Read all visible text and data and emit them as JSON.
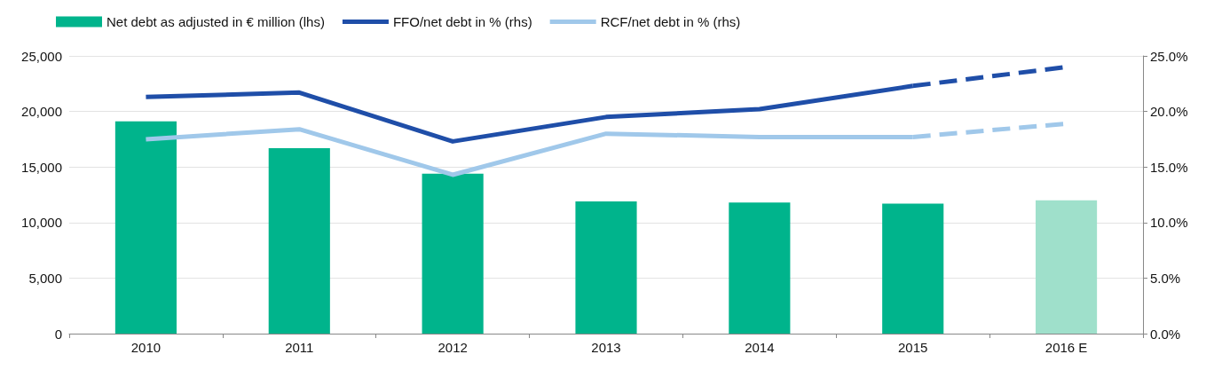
{
  "chart_data": {
    "type": "bar",
    "categories": [
      "2010",
      "2011",
      "2012",
      "2013",
      "2014",
      "2015",
      "2016 E"
    ],
    "series": [
      {
        "name": "Net debt as adjusted in € million (lhs)",
        "color": "#00b48c",
        "colors": [
          "#00b48c",
          "#00b48c",
          "#00b48c",
          "#00b48c",
          "#00b48c",
          "#00b48c",
          "#9fe0cb"
        ],
        "values": [
          19100,
          16700,
          14400,
          11900,
          11800,
          11700,
          12000
        ]
      },
      {
        "type": "line",
        "name": "FFO/net debt in % (rhs)",
        "color": "#1f4ea8",
        "axis": "y2",
        "line_style": "solid",
        "values": [
          21.3,
          21.7,
          17.3,
          19.5,
          20.2,
          22.3,
          null
        ]
      },
      {
        "type": "line",
        "color": "#1f4ea8",
        "axis": "y2",
        "line_style": "dashed",
        "values": [
          null,
          null,
          null,
          null,
          null,
          22.3,
          24.0
        ]
      },
      {
        "type": "line",
        "name": "RCF/net debt in % (rhs)",
        "color": "#a0c8ea",
        "axis": "y2",
        "line_style": "solid",
        "values": [
          17.5,
          18.4,
          14.3,
          18.0,
          17.7,
          17.7,
          null
        ]
      },
      {
        "type": "line",
        "color": "#a0c8ea",
        "axis": "y2",
        "line_style": "dashed",
        "values": [
          null,
          null,
          null,
          null,
          null,
          17.7,
          18.9
        ]
      }
    ],
    "ylim": [
      0,
      25000
    ],
    "yticks": [
      {
        "value": 0,
        "label": "0"
      },
      {
        "value": 5000,
        "label": "5,000"
      },
      {
        "value": 10000,
        "label": "10,000"
      },
      {
        "value": 15000,
        "label": "15,000"
      },
      {
        "value": 20000,
        "label": "20,000"
      },
      {
        "value": 25000,
        "label": "25,000"
      }
    ],
    "y2lim": [
      0,
      25
    ],
    "y2ticks": [
      {
        "value": 0,
        "label": "0.0%"
      },
      {
        "value": 5,
        "label": "5.0%"
      },
      {
        "value": 10,
        "label": "10.0%"
      },
      {
        "value": 15,
        "label": "15.0%"
      },
      {
        "value": 20,
        "label": "20.0%"
      },
      {
        "value": 25,
        "label": "25.0%"
      }
    ],
    "grid": "y",
    "legend": "top left",
    "marker": "none"
  }
}
